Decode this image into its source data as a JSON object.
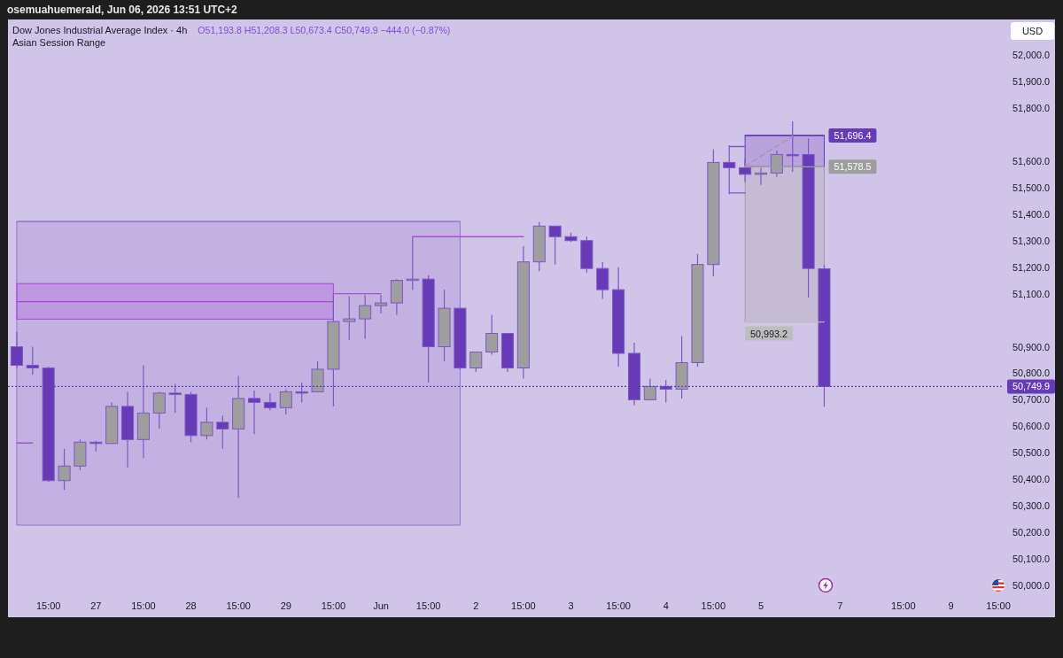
{
  "chart_data": {
    "type": "candlestick",
    "title": "Dow Jones Industrial Average Index · 4h",
    "subtitle": "O51,193.8 H51,208.3 L50,673.4 C50,749.9 −444.0 (−0.87%)",
    "ylabel": "USD",
    "annotations": [
      "osemuahuemerald, Jun 06, 2026 13:51 UTC+2",
      "Asian Session Range"
    ],
    "categories": [
      null,
      null,
      "15:00",
      null,
      null,
      "27",
      null,
      null,
      "15:00",
      null,
      null,
      "28",
      null,
      null,
      "15:00",
      null,
      null,
      "29",
      null,
      null,
      "15:00",
      null,
      null,
      "Jun",
      null,
      null,
      "15:00",
      null,
      null,
      "2",
      null,
      null,
      "15:00",
      null,
      null,
      "3",
      null,
      null,
      "15:00",
      null,
      null,
      "4",
      null,
      null,
      "15:00",
      null,
      null,
      "5",
      null,
      null,
      null,
      null,
      "7",
      null,
      null,
      null,
      "15:00",
      null,
      null,
      "9",
      null,
      null,
      "15:00"
    ],
    "ohlc": [
      [
        50900,
        50955,
        50820,
        50830
      ],
      [
        50830,
        50900,
        50795,
        50820
      ],
      [
        50820,
        50825,
        50390,
        50395
      ],
      [
        50395,
        50515,
        50360,
        50450
      ],
      [
        50450,
        50550,
        50435,
        50540
      ],
      [
        50540,
        50545,
        50505,
        50535
      ],
      [
        50535,
        50690,
        50535,
        50675
      ],
      [
        50675,
        50730,
        50445,
        50550
      ],
      [
        50550,
        50830,
        50480,
        50650
      ],
      [
        50650,
        50730,
        50590,
        50725
      ],
      [
        50725,
        50760,
        50650,
        50720
      ],
      [
        50720,
        50730,
        50540,
        50565
      ],
      [
        50565,
        50670,
        50550,
        50615
      ],
      [
        50615,
        50640,
        50515,
        50590
      ],
      [
        50590,
        50790,
        50330,
        50705
      ],
      [
        50705,
        50735,
        50570,
        50690
      ],
      [
        50690,
        50725,
        50660,
        50670
      ],
      [
        50670,
        50740,
        50645,
        50730
      ],
      [
        50730,
        50765,
        50690,
        50730
      ],
      [
        50730,
        50845,
        50730,
        50815
      ],
      [
        50815,
        51100,
        50675,
        50995
      ],
      [
        50995,
        51090,
        50925,
        51005
      ],
      [
        51005,
        51095,
        50930,
        51055
      ],
      [
        51055,
        51095,
        51025,
        51065
      ],
      [
        51065,
        51155,
        51020,
        51150
      ],
      [
        51150,
        51315,
        51115,
        51155
      ],
      [
        51155,
        51170,
        50765,
        50900
      ],
      [
        50900,
        51115,
        50845,
        51045
      ],
      [
        51045,
        51045,
        50815,
        50820
      ],
      [
        50820,
        50880,
        50805,
        50880
      ],
      [
        50880,
        51020,
        50870,
        50950
      ],
      [
        50950,
        50950,
        50805,
        50820
      ],
      [
        50820,
        51280,
        50780,
        51220
      ],
      [
        51220,
        51370,
        51185,
        51355
      ],
      [
        51355,
        51355,
        51210,
        51315
      ],
      [
        51315,
        51330,
        51295,
        51300
      ],
      [
        51300,
        51315,
        51180,
        51195
      ],
      [
        51195,
        51220,
        51080,
        51115
      ],
      [
        51115,
        51200,
        50825,
        50875
      ],
      [
        50875,
        50915,
        50680,
        50700
      ],
      [
        50700,
        50780,
        50700,
        50750
      ],
      [
        50750,
        50775,
        50690,
        50740
      ],
      [
        50740,
        50940,
        50705,
        50840
      ],
      [
        50840,
        51250,
        50825,
        51210
      ],
      [
        51210,
        51645,
        51165,
        51595
      ],
      [
        51595,
        51660,
        51475,
        51575
      ],
      [
        51575,
        51610,
        51520,
        51550
      ],
      [
        51550,
        51575,
        51510,
        51555
      ],
      [
        51555,
        51640,
        51540,
        51625
      ],
      [
        51625,
        51750,
        51560,
        51625
      ],
      [
        51625,
        51685,
        51085,
        51195
      ],
      [
        51193.8,
        51208.3,
        50673.4,
        50749.9
      ],
      null,
      null,
      null,
      null,
      null,
      null,
      null,
      null,
      null,
      null,
      null
    ],
    "color": "#7e57c2",
    "colors": [
      "#673ab7",
      "#673ab7",
      "#673ab7",
      "#9e9e9e",
      "#9e9e9e",
      "#673ab7",
      "#9e9e9e",
      "#673ab7",
      "#9e9e9e",
      "#9e9e9e",
      "#673ab7",
      "#673ab7",
      "#9e9e9e",
      "#673ab7",
      "#9e9e9e",
      "#673ab7",
      "#673ab7",
      "#9e9e9e",
      "#673ab7",
      "#9e9e9e",
      "#9e9e9e",
      "#9e9e9e",
      "#9e9e9e",
      "#9e9e9e",
      "#9e9e9e",
      "#9e9e9e",
      "#673ab7",
      "#9e9e9e",
      "#673ab7",
      "#9e9e9e",
      "#9e9e9e",
      "#673ab7",
      "#9e9e9e",
      "#9e9e9e",
      "#673ab7",
      "#673ab7",
      "#673ab7",
      "#673ab7",
      "#673ab7",
      "#673ab7",
      "#9e9e9e",
      "#673ab7",
      "#9e9e9e",
      "#9e9e9e",
      "#9e9e9e",
      "#673ab7",
      "#673ab7",
      "#9e9e9e",
      "#9e9e9e",
      "#673ab7",
      "#673ab7",
      "#673ab7",
      null,
      null,
      null,
      null,
      null,
      null,
      null,
      null,
      null,
      null,
      null
    ],
    "series": [
      {
        "type": "line",
        "color": "#9575cd",
        "values": [
          51372,
          null,
          null,
          null,
          null,
          null,
          null,
          null,
          null,
          null,
          null,
          null,
          null,
          null,
          null,
          null,
          null,
          null,
          null,
          null,
          null,
          null,
          null,
          null,
          null,
          null,
          null,
          null,
          51372,
          null,
          null,
          null,
          null,
          null,
          null,
          null,
          null,
          null,
          null,
          null,
          null,
          null,
          null,
          null,
          null,
          null,
          null,
          null,
          null,
          null,
          null,
          null,
          null,
          null,
          null,
          null,
          null,
          null,
          null,
          null,
          null,
          null,
          null
        ],
        "upper": [
          51372,
          null,
          null,
          null,
          null,
          null,
          null,
          null,
          null,
          null,
          null,
          null,
          null,
          null,
          null,
          null,
          null,
          null,
          null,
          null,
          null,
          null,
          null,
          null,
          null,
          null,
          null,
          null,
          51372,
          null,
          null,
          null,
          null,
          null,
          null,
          null,
          null,
          null,
          null,
          null,
          null,
          null,
          null,
          null,
          null,
          null,
          null,
          null,
          null,
          null,
          null,
          null,
          null,
          null,
          null,
          null,
          null,
          null,
          null,
          null,
          null,
          null,
          null
        ],
        "lower": [
          50227,
          null,
          null,
          null,
          null,
          null,
          null,
          null,
          null,
          null,
          null,
          null,
          null,
          null,
          null,
          null,
          null,
          null,
          null,
          null,
          null,
          null,
          null,
          null,
          null,
          null,
          null,
          null,
          50227,
          null,
          null,
          null,
          null,
          null,
          null,
          null,
          null,
          null,
          null,
          null,
          null,
          null,
          null,
          null,
          null,
          null,
          null,
          null,
          null,
          null,
          null,
          null,
          null,
          null,
          null,
          null,
          null,
          null,
          null,
          null,
          null,
          null,
          null
        ]
      },
      {
        "type": "line",
        "color": "#ab47d6",
        "values": [
          51070,
          null,
          null,
          null,
          null,
          null,
          null,
          null,
          null,
          null,
          null,
          null,
          null,
          null,
          null,
          null,
          null,
          null,
          null,
          null,
          51070,
          null,
          null,
          null,
          null,
          null,
          null,
          null,
          null,
          null,
          null,
          null,
          null,
          null,
          null,
          null,
          null,
          null,
          null,
          null,
          null,
          null,
          null,
          null,
          null,
          null,
          null,
          null,
          null,
          null,
          null,
          null,
          null,
          null,
          null,
          null,
          null,
          null,
          null,
          null,
          null,
          null,
          null
        ],
        "upper": [
          51138,
          null,
          null,
          null,
          null,
          null,
          null,
          null,
          null,
          null,
          null,
          null,
          null,
          null,
          null,
          null,
          null,
          null,
          null,
          null,
          51138,
          null,
          null,
          null,
          null,
          null,
          null,
          null,
          null,
          null,
          null,
          null,
          null,
          null,
          null,
          null,
          null,
          null,
          null,
          null,
          null,
          null,
          null,
          null,
          null,
          null,
          null,
          null,
          null,
          null,
          null,
          null,
          null,
          null,
          null,
          null,
          null,
          null,
          null,
          null,
          null,
          null,
          null
        ],
        "lower": [
          51004,
          null,
          null,
          null,
          null,
          null,
          null,
          null,
          null,
          null,
          null,
          null,
          null,
          null,
          null,
          null,
          null,
          null,
          null,
          null,
          51004,
          null,
          null,
          null,
          null,
          null,
          null,
          null,
          null,
          null,
          null,
          null,
          null,
          null,
          null,
          null,
          null,
          null,
          null,
          null,
          null,
          null,
          null,
          null,
          null,
          null,
          null,
          null,
          null,
          null,
          null,
          null,
          null,
          null,
          null,
          null,
          null,
          null,
          null,
          null,
          null,
          null,
          null
        ]
      },
      {
        "type": "line",
        "color": "#a64fd6",
        "values": [
          50537,
          50537,
          null,
          null,
          null,
          null,
          null,
          null,
          null,
          null,
          null,
          null,
          null,
          null,
          null,
          null,
          null,
          null,
          null,
          null,
          null,
          null,
          null,
          null,
          null,
          null,
          null,
          null,
          null,
          null,
          null,
          null,
          null,
          null,
          null,
          null,
          null,
          null,
          null,
          null,
          null,
          null,
          null,
          null,
          null,
          null,
          null,
          null,
          null,
          null,
          null,
          null,
          null,
          null,
          null,
          null,
          null,
          null,
          null,
          null,
          null,
          null,
          null
        ]
      },
      {
        "type": "line",
        "color": "#a64fd6",
        "values": [
          null,
          null,
          null,
          null,
          null,
          null,
          null,
          null,
          null,
          null,
          null,
          null,
          null,
          null,
          null,
          null,
          null,
          null,
          null,
          null,
          51100,
          null,
          null,
          51100,
          null,
          null,
          null,
          null,
          null,
          null,
          null,
          null,
          null,
          null,
          null,
          null,
          null,
          null,
          null,
          null,
          null,
          null,
          null,
          null,
          null,
          null,
          null,
          null,
          null,
          null,
          null,
          null,
          null,
          null,
          null,
          null,
          null,
          null,
          null,
          null,
          null,
          null,
          null
        ]
      },
      {
        "type": "line",
        "color": "#a64fd6",
        "values": [
          null,
          null,
          null,
          null,
          null,
          null,
          null,
          null,
          null,
          null,
          null,
          null,
          null,
          null,
          null,
          null,
          null,
          null,
          null,
          null,
          null,
          null,
          null,
          null,
          null,
          51315,
          null,
          null,
          null,
          null,
          null,
          null,
          51315,
          null,
          null,
          null,
          null,
          null,
          null,
          null,
          null,
          null,
          null,
          null,
          null,
          null,
          null,
          null,
          null,
          null,
          null,
          null,
          null,
          null,
          null,
          null,
          null,
          null,
          null,
          null,
          null,
          null,
          null
        ]
      },
      {
        "type": "line",
        "color": "#673ab7",
        "values": [
          null,
          null,
          null,
          null,
          null,
          null,
          null,
          null,
          null,
          null,
          null,
          null,
          null,
          null,
          null,
          null,
          null,
          null,
          null,
          null,
          null,
          null,
          null,
          null,
          null,
          null,
          null,
          null,
          null,
          null,
          null,
          null,
          null,
          null,
          null,
          null,
          null,
          null,
          null,
          null,
          null,
          null,
          null,
          null,
          null,
          null,
          51696.4,
          null,
          null,
          null,
          null,
          51696.4,
          null,
          null,
          null,
          null,
          null,
          null,
          null,
          null,
          null,
          null,
          null
        ],
        "upper": [
          null,
          null,
          null,
          null,
          null,
          null,
          null,
          null,
          null,
          null,
          null,
          null,
          null,
          null,
          null,
          null,
          null,
          null,
          null,
          null,
          null,
          null,
          null,
          null,
          null,
          null,
          null,
          null,
          null,
          null,
          null,
          null,
          null,
          null,
          null,
          null,
          null,
          null,
          null,
          null,
          null,
          null,
          null,
          null,
          null,
          null,
          51696.4,
          null,
          null,
          null,
          null,
          51696.4,
          null,
          null,
          null,
          null,
          null,
          null,
          null,
          null,
          null,
          null,
          null
        ],
        "lower": [
          null,
          null,
          null,
          null,
          null,
          null,
          null,
          null,
          null,
          null,
          null,
          null,
          null,
          null,
          null,
          null,
          null,
          null,
          null,
          null,
          null,
          null,
          null,
          null,
          null,
          null,
          null,
          null,
          null,
          null,
          null,
          null,
          null,
          null,
          null,
          null,
          null,
          null,
          null,
          null,
          null,
          null,
          null,
          null,
          null,
          null,
          51578.5,
          null,
          null,
          null,
          null,
          51578.5,
          null,
          null,
          null,
          null,
          null,
          null,
          null,
          null,
          null,
          null,
          null
        ],
        "value_labels": [
          null,
          null,
          null,
          null,
          null,
          null,
          null,
          null,
          null,
          null,
          null,
          null,
          null,
          null,
          null,
          null,
          null,
          null,
          null,
          null,
          null,
          null,
          null,
          null,
          null,
          null,
          null,
          null,
          null,
          null,
          null,
          null,
          null,
          null,
          null,
          null,
          null,
          null,
          null,
          null,
          null,
          null,
          null,
          null,
          null,
          null,
          null,
          null,
          null,
          null,
          null,
          "51,696.4",
          null,
          null,
          null,
          null,
          null,
          null,
          null,
          null,
          null,
          null,
          null
        ]
      },
      {
        "type": "line",
        "color": "#9e9e9e",
        "values": [
          null,
          null,
          null,
          null,
          null,
          null,
          null,
          null,
          null,
          null,
          null,
          null,
          null,
          null,
          null,
          null,
          null,
          null,
          null,
          null,
          null,
          null,
          null,
          null,
          null,
          null,
          null,
          null,
          null,
          null,
          null,
          null,
          null,
          null,
          null,
          null,
          null,
          null,
          null,
          null,
          null,
          null,
          null,
          null,
          null,
          null,
          51578.5,
          null,
          null,
          null,
          null,
          51578.5,
          null,
          null,
          null,
          null,
          null,
          null,
          null,
          null,
          null,
          null,
          null
        ],
        "upper": [
          null,
          null,
          null,
          null,
          null,
          null,
          null,
          null,
          null,
          null,
          null,
          null,
          null,
          null,
          null,
          null,
          null,
          null,
          null,
          null,
          null,
          null,
          null,
          null,
          null,
          null,
          null,
          null,
          null,
          null,
          null,
          null,
          null,
          null,
          null,
          null,
          null,
          null,
          null,
          null,
          null,
          null,
          null,
          null,
          null,
          null,
          51578.5,
          null,
          null,
          null,
          null,
          51578.5,
          null,
          null,
          null,
          null,
          null,
          null,
          null,
          null,
          null,
          null,
          null
        ],
        "lower": [
          null,
          null,
          null,
          null,
          null,
          null,
          null,
          null,
          null,
          null,
          null,
          null,
          null,
          null,
          null,
          null,
          null,
          null,
          null,
          null,
          null,
          null,
          null,
          null,
          null,
          null,
          null,
          null,
          null,
          null,
          null,
          null,
          null,
          null,
          null,
          null,
          null,
          null,
          null,
          null,
          null,
          null,
          null,
          null,
          null,
          null,
          50993.2,
          null,
          null,
          null,
          null,
          50993.2,
          null,
          null,
          null,
          null,
          null,
          null,
          null,
          null,
          null,
          null,
          null
        ],
        "value_labels": [
          null,
          null,
          null,
          null,
          null,
          null,
          null,
          null,
          null,
          null,
          null,
          null,
          null,
          null,
          null,
          null,
          null,
          null,
          null,
          null,
          null,
          null,
          null,
          null,
          null,
          null,
          null,
          null,
          null,
          null,
          null,
          null,
          null,
          null,
          null,
          null,
          null,
          null,
          null,
          null,
          null,
          null,
          null,
          null,
          null,
          null,
          null,
          null,
          null,
          null,
          null,
          "51,578.5",
          null,
          null,
          null,
          null,
          null,
          null,
          null,
          null,
          null,
          null,
          null
        ]
      },
      {
        "type": "line",
        "color": "#bdbdbd",
        "values": [
          null,
          null,
          null,
          null,
          null,
          null,
          null,
          null,
          null,
          null,
          null,
          null,
          null,
          null,
          null,
          null,
          null,
          null,
          null,
          null,
          null,
          null,
          null,
          null,
          null,
          null,
          null,
          null,
          null,
          null,
          null,
          null,
          null,
          null,
          null,
          null,
          null,
          null,
          null,
          null,
          null,
          null,
          null,
          null,
          null,
          null,
          50993.2,
          null,
          null,
          null,
          null,
          50993.2,
          null,
          null,
          null,
          null,
          null,
          null,
          null,
          null,
          null,
          null,
          null
        ],
        "value_labels": [
          null,
          null,
          null,
          null,
          null,
          null,
          null,
          null,
          null,
          null,
          null,
          null,
          null,
          null,
          null,
          null,
          null,
          null,
          null,
          null,
          null,
          null,
          null,
          null,
          null,
          null,
          null,
          null,
          null,
          null,
          null,
          null,
          null,
          null,
          null,
          null,
          null,
          null,
          null,
          null,
          null,
          null,
          null,
          null,
          null,
          null,
          "50,993.2",
          null,
          null,
          null,
          null,
          null,
          null,
          null,
          null,
          null,
          null,
          null,
          null,
          null,
          null,
          null,
          null
        ]
      },
      {
        "type": "line",
        "color": "#7e57c2",
        "values": [
          null,
          null,
          null,
          null,
          null,
          null,
          null,
          null,
          null,
          null,
          null,
          null,
          null,
          null,
          null,
          null,
          null,
          null,
          null,
          null,
          null,
          null,
          null,
          null,
          null,
          null,
          null,
          null,
          null,
          null,
          null,
          null,
          null,
          null,
          null,
          null,
          null,
          null,
          null,
          null,
          null,
          null,
          null,
          null,
          null,
          51655,
          51655,
          null,
          null,
          null,
          null,
          null,
          null,
          null,
          null,
          null,
          null,
          null,
          null,
          null,
          null,
          null,
          null
        ]
      },
      {
        "type": "line",
        "color": "#7e57c2",
        "values": [
          null,
          null,
          null,
          null,
          null,
          null,
          null,
          null,
          null,
          null,
          null,
          null,
          null,
          null,
          null,
          null,
          null,
          null,
          null,
          null,
          null,
          null,
          null,
          null,
          null,
          null,
          null,
          null,
          null,
          null,
          null,
          null,
          null,
          null,
          null,
          null,
          null,
          null,
          null,
          null,
          null,
          null,
          null,
          null,
          null,
          51480,
          51480,
          null,
          null,
          null,
          null,
          null,
          null,
          null,
          null,
          null,
          null,
          null,
          null,
          null,
          null,
          null,
          null
        ]
      },
      {
        "type": "line",
        "color": "#9e9e9e",
        "line_style": "dashed",
        "values": [
          null,
          null,
          null,
          null,
          null,
          null,
          null,
          null,
          null,
          null,
          null,
          null,
          null,
          null,
          null,
          null,
          null,
          null,
          null,
          null,
          null,
          null,
          null,
          null,
          null,
          null,
          null,
          null,
          null,
          null,
          null,
          null,
          null,
          null,
          null,
          null,
          null,
          null,
          null,
          null,
          null,
          null,
          null,
          null,
          null,
          null,
          51580,
          null,
          null,
          51695,
          null,
          null,
          null,
          null,
          null,
          null,
          null,
          null,
          null,
          null,
          null,
          null,
          null
        ]
      }
    ],
    "ref_lines": [
      {
        "axis": "y",
        "value": 50749.9,
        "label": "50,749.9",
        "color": "#673ab7",
        "line_style": "dotted"
      }
    ],
    "ylim": [
      50000,
      52134
    ],
    "yticks": [
      {
        "value": 50000,
        "label": "50,000.0"
      },
      {
        "value": 50100,
        "label": "50,100.0"
      },
      {
        "value": 50200,
        "label": "50,200.0"
      },
      {
        "value": 50300,
        "label": "50,300.0"
      },
      {
        "value": 50400,
        "label": "50,400.0"
      },
      {
        "value": 50500,
        "label": "50,500.0"
      },
      {
        "value": 50600,
        "label": "50,600.0"
      },
      {
        "value": 50700,
        "label": "50,700.0"
      },
      {
        "value": 50800,
        "label": "50,800.0"
      },
      {
        "value": 50900,
        "label": "50,900.0"
      },
      {
        "value": 51100,
        "label": "51,100.0"
      },
      {
        "value": 51200,
        "label": "51,200.0"
      },
      {
        "value": 51300,
        "label": "51,300.0"
      },
      {
        "value": 51400,
        "label": "51,400.0"
      },
      {
        "value": 51500,
        "label": "51,500.0"
      },
      {
        "value": 51600,
        "label": "51,600.0"
      },
      {
        "value": 51800,
        "label": "51,800.0"
      },
      {
        "value": 51900,
        "label": "51,900.0"
      },
      {
        "value": 52000,
        "label": "52,000.0"
      }
    ]
  }
}
